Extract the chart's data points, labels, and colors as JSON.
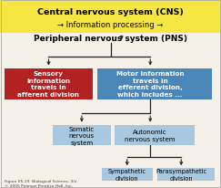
{
  "bg_color": "#f5f0e8",
  "top_banner_color": "#f5e642",
  "title_text": "Central nervous system (CNS)",
  "title_sub": "→ Information processing →",
  "pns_text": "Peripheral nervous system (PNS)",
  "box_red_color": "#b22222",
  "box_blue_color": "#4a86b8",
  "box_light_blue": "#a8c8e0",
  "box_red_text": "Sensory\ninformation\ntravels in\nafferent division",
  "box_blue_text": "Motor information\ntravels in\nefferent division,\nwhich includes ...",
  "box_somatic": "Somatic\nnervous\nsystem",
  "box_autonomic": "Autonomic\nnervous system",
  "box_sympathetic": "Sympathetic\ndivision",
  "box_parasympathetic": "Parasympathetic\ndivision",
  "footer": "Figure 05-19  Biological Science, 3/e\n© 2005 Pearson Prentice Hall, Inc.",
  "arrow_color": "#222222",
  "border_color": "#aaaaaa"
}
